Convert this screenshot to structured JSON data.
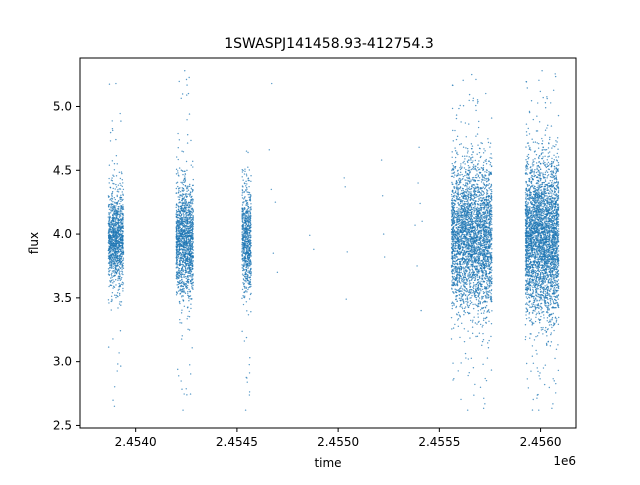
{
  "chart_data": {
    "type": "scatter",
    "title": "1SWASPJ141458.93-412754.3",
    "xlabel": "time",
    "ylabel": "flux",
    "x_offset_label": "1e6",
    "xlim": [
      2453725,
      2456175
    ],
    "ylim": [
      2.48,
      5.38
    ],
    "x_ticks": [
      2.454,
      2.4545,
      2.455,
      2.4555,
      2.456
    ],
    "x_tick_labels": [
      "2.4540",
      "2.4545",
      "2.4550",
      "2.4555",
      "2.4560"
    ],
    "y_ticks": [
      2.5,
      3.0,
      3.5,
      4.0,
      4.5,
      5.0
    ],
    "y_tick_labels": [
      "2.5",
      "3.0",
      "3.5",
      "4.0",
      "4.5",
      "5.0"
    ],
    "grid": false,
    "legend": "none",
    "marker_color": "#1f77b4",
    "series": [
      {
        "clusters": [
          {
            "x_range": [
              2453865,
              2453940
            ],
            "y_center": 3.95,
            "y_spread": 0.18,
            "y_range": [
              2.65,
              5.18
            ],
            "points": 1100
          },
          {
            "x_range": [
              2454200,
              2454285
            ],
            "y_center": 3.95,
            "y_spread": 0.22,
            "y_range": [
              2.62,
              5.28
            ],
            "points": 1400
          },
          {
            "x_range": [
              2454525,
              2454570
            ],
            "y_center": 3.95,
            "y_spread": 0.2,
            "y_range": [
              2.62,
              4.65
            ],
            "points": 700
          },
          {
            "x_range": [
              2455560,
              2455760
            ],
            "y_center": 3.98,
            "y_spread": 0.28,
            "y_range": [
              2.62,
              5.25
            ],
            "points": 3200
          },
          {
            "x_range": [
              2455925,
              2456090
            ],
            "y_center": 3.97,
            "y_spread": 0.3,
            "y_range": [
              2.62,
              5.28
            ],
            "points": 3400
          }
        ],
        "sparse_points": [
          {
            "x": 2454660,
            "y": 4.66
          },
          {
            "x": 2454670,
            "y": 4.35
          },
          {
            "x": 2454672,
            "y": 5.18
          },
          {
            "x": 2454680,
            "y": 3.85
          },
          {
            "x": 2454690,
            "y": 4.25
          },
          {
            "x": 2454700,
            "y": 3.7
          },
          {
            "x": 2454860,
            "y": 3.99
          },
          {
            "x": 2454880,
            "y": 3.88
          },
          {
            "x": 2455030,
            "y": 4.44
          },
          {
            "x": 2455035,
            "y": 4.37
          },
          {
            "x": 2455045,
            "y": 3.86
          },
          {
            "x": 2455040,
            "y": 3.49
          },
          {
            "x": 2455215,
            "y": 4.58
          },
          {
            "x": 2455220,
            "y": 4.3
          },
          {
            "x": 2455225,
            "y": 4.0
          },
          {
            "x": 2455230,
            "y": 3.82
          },
          {
            "x": 2455380,
            "y": 4.07
          },
          {
            "x": 2455390,
            "y": 3.75
          },
          {
            "x": 2455395,
            "y": 4.4
          },
          {
            "x": 2455400,
            "y": 4.68
          },
          {
            "x": 2455405,
            "y": 4.24
          },
          {
            "x": 2455410,
            "y": 3.4
          },
          {
            "x": 2455415,
            "y": 4.1
          }
        ]
      }
    ]
  }
}
